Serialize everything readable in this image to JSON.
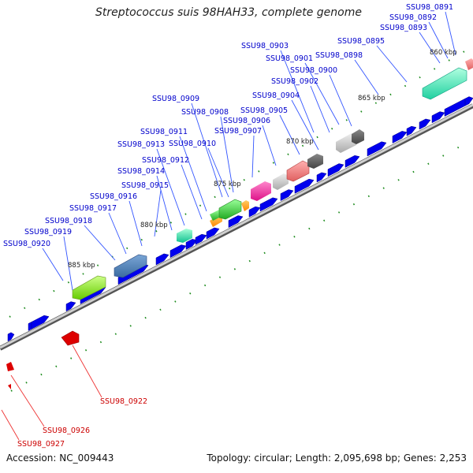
{
  "title": "Streptococcus suis 98HAH33, complete genome",
  "footer": {
    "accession": "Accession: NC_009443",
    "info": "Topology: circular; Length: 2,095,698 bp; Genes: 2,253"
  },
  "colors": {
    "forward_gene": "#0000ee",
    "highlight_gene": "#dd0000",
    "backbone": "#999999",
    "label_blue": "#0000cc",
    "label_red": "#cc0000",
    "tick": "#1a8a1a"
  },
  "scale_labels": [
    "860 kbp",
    "865 kbp",
    "870 kbp",
    "875 kbp",
    "880 kbp",
    "885 kbp"
  ],
  "gene_labels_blue": [
    "SSU98_0891",
    "SSU98_0892",
    "SSU98_0893",
    "SSU98_0895",
    "SSU98_0898",
    "SSU98_0900",
    "SSU98_0901",
    "SSU98_0902",
    "SSU98_0903",
    "SSU98_0904",
    "SSU98_0905",
    "SSU98_0906",
    "SSU98_0907",
    "SSU98_0908",
    "SSU98_0909",
    "SSU98_0910",
    "SSU98_0911",
    "SSU98_0912",
    "SSU98_0913",
    "SSU98_0914",
    "SSU98_0915",
    "SSU98_0916",
    "SSU98_0917",
    "SSU98_0918",
    "SSU98_0919",
    "SSU98_0920"
  ],
  "gene_labels_red": [
    "SSU98_0922",
    "SSU98_0926",
    "SSU98_0927"
  ]
}
